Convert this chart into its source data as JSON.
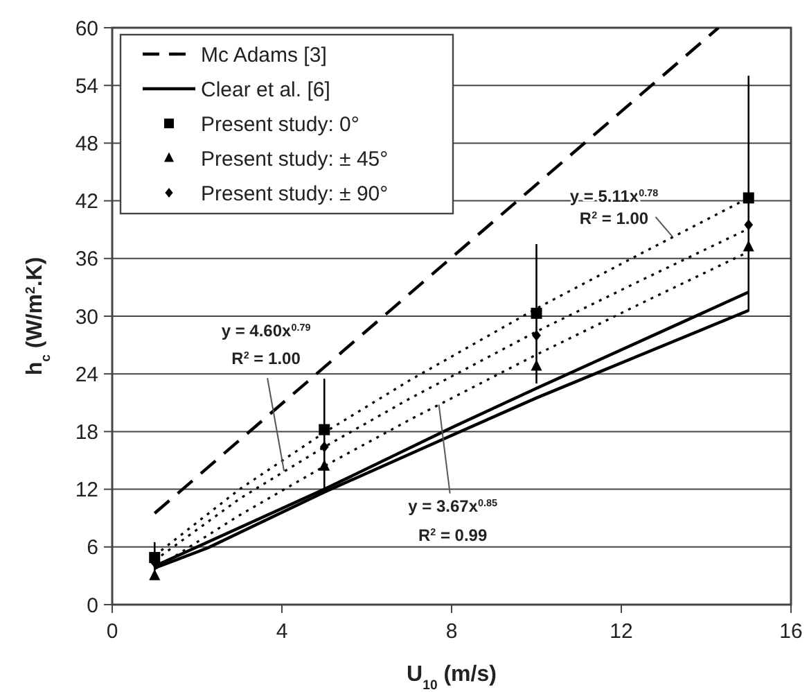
{
  "chart_data": {
    "type": "line",
    "xlabel": "U$_{10}$ (m/s)",
    "ylabel": "h$_{c}$ (W/m$^{2}$.K)",
    "xlim": [
      0,
      16
    ],
    "xticks": [
      0,
      4,
      8,
      12,
      16
    ],
    "ylim": [
      0,
      60
    ],
    "yticks": [
      0,
      6,
      12,
      18,
      24,
      30,
      36,
      42,
      48,
      54,
      60
    ],
    "grid": "y",
    "legend": "top left",
    "series": [
      {
        "name": "Mc Adams [3]",
        "color": "#000000",
        "line_style": "dashed",
        "marker": "none",
        "x": [
          1,
          14.29
        ],
        "values": [
          9.5,
          60
        ]
      },
      {
        "name": "Clear et al. [6]",
        "color": "#000000",
        "line_style": "solid",
        "marker": "none",
        "x": [
          1,
          5,
          8,
          10,
          15
        ],
        "values": [
          4.0,
          12.0,
          18.4,
          22.5,
          32.5
        ]
      },
      {
        "type": "line",
        "color": "#000000",
        "line_style": "solid",
        "marker": "none",
        "x": [
          1,
          2.25,
          5,
          8,
          10,
          15
        ],
        "values": [
          3.8,
          5.9,
          11.7,
          17.6,
          21.5,
          30.6
        ]
      },
      {
        "type": "line",
        "color": "#000000",
        "line_style": "dotted",
        "marker": "none",
        "x": [
          1,
          3,
          5,
          7,
          10,
          12.5,
          15
        ],
        "values": [
          5.1,
          12.0,
          17.9,
          23.3,
          30.8,
          36.6,
          42.3
        ]
      },
      {
        "type": "line",
        "color": "#000000",
        "line_style": "dotted",
        "marker": "none",
        "x": [
          1,
          3,
          5,
          7,
          10,
          12.5,
          15
        ],
        "values": [
          4.6,
          11.0,
          16.4,
          21.4,
          28.4,
          33.8,
          39.1
        ]
      },
      {
        "type": "line",
        "color": "#000000",
        "line_style": "dotted",
        "marker": "none",
        "x": [
          1,
          3,
          5,
          7,
          10,
          12.5,
          15
        ],
        "values": [
          3.7,
          9.3,
          14.4,
          19.2,
          26.0,
          31.4,
          36.7
        ]
      },
      {
        "name": "Present study: 0°",
        "type": "scatter",
        "color": "#000000",
        "marker": "square",
        "x": [
          1,
          5,
          10,
          15
        ],
        "values": [
          4.9,
          18.2,
          30.3,
          42.3
        ],
        "errors": [
          [
            3.5,
            6.5
          ],
          [
            12,
            23.5
          ],
          [
            23,
            37.5
          ],
          [
            30.5,
            55
          ]
        ]
      },
      {
        "name": "Present study: ± 45°",
        "type": "scatter",
        "color": "#000000",
        "marker": "triangle",
        "x": [
          1,
          5,
          10,
          15
        ],
        "values": [
          3.0,
          14.4,
          24.8,
          37.2
        ]
      },
      {
        "name": "Present study: ± 90°",
        "type": "scatter",
        "color": "#000000",
        "marker": "diamond",
        "x": [
          1,
          5,
          10,
          15
        ],
        "values": [
          4.4,
          16.4,
          28.0,
          39.5
        ]
      }
    ],
    "annotations": [
      "y = 5.11x$^{0.78}$",
      {
        "text": "R$^{2}$ = 1.00",
        "x": 13.2,
        "y": 38.3
      },
      "y = 4.60x$^{0.79}$",
      {
        "text": "R$^{2}$ = 1.00",
        "x": 4.05,
        "y": 13.9
      },
      {
        "text": "y = 3.67x$^{0.85}$",
        "x": 7.7,
        "y": 20.8
      },
      "R$^{2}$ = 0.99"
    ]
  }
}
